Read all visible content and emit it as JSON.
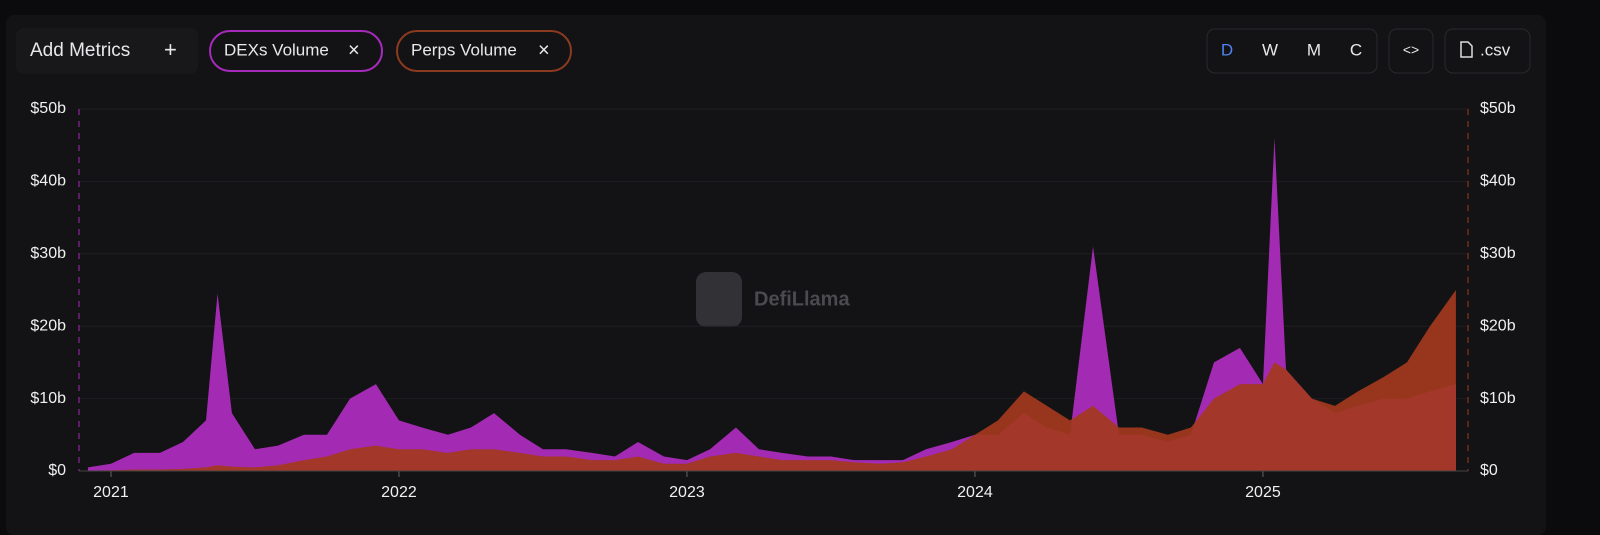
{
  "toolbar": {
    "add_metrics": "Add Metrics",
    "add_icon": "+",
    "remove_icon": "×",
    "periods": [
      "D",
      "W",
      "M",
      "C"
    ],
    "embed": "<>",
    "csv": ".csv"
  },
  "watermark": "DefiLlama",
  "chart_data": {
    "type": "area",
    "x": [
      2020.92,
      2021.0,
      2021.08,
      2021.17,
      2021.25,
      2021.33,
      2021.37,
      2021.42,
      2021.5,
      2021.58,
      2021.67,
      2021.75,
      2021.83,
      2021.92,
      2022.0,
      2022.08,
      2022.17,
      2022.25,
      2022.33,
      2022.42,
      2022.5,
      2022.58,
      2022.67,
      2022.75,
      2022.83,
      2022.92,
      2023.0,
      2023.08,
      2023.17,
      2023.25,
      2023.33,
      2023.42,
      2023.5,
      2023.58,
      2023.67,
      2023.75,
      2023.83,
      2023.92,
      2024.0,
      2024.08,
      2024.17,
      2024.25,
      2024.33,
      2024.41,
      2024.5,
      2024.58,
      2024.67,
      2024.75,
      2024.83,
      2024.92,
      2025.0,
      2025.04,
      2025.08,
      2025.17,
      2025.25,
      2025.33,
      2025.42,
      2025.5,
      2025.58,
      2025.67
    ],
    "series": [
      {
        "name": "DEXs Volume",
        "color": "#b02cc0",
        "values": [
          0.5,
          1,
          2.5,
          2.5,
          4,
          7,
          24.5,
          8,
          3,
          3.5,
          5,
          5,
          10,
          12,
          7,
          6,
          5,
          6,
          8,
          5,
          3,
          3,
          2.5,
          2,
          4,
          2,
          1.5,
          3,
          6,
          3,
          2.5,
          2,
          2,
          1.5,
          1.5,
          1.5,
          3,
          4,
          5,
          5,
          8,
          6,
          5,
          31,
          5,
          5,
          4,
          5,
          15,
          17,
          12,
          46,
          14,
          10,
          8,
          9,
          10,
          10,
          11,
          12
        ]
      },
      {
        "name": "Perps Volume",
        "color": "#a33a1e",
        "values": [
          0.05,
          0.1,
          0.2,
          0.2,
          0.3,
          0.5,
          0.8,
          0.6,
          0.5,
          0.8,
          1.5,
          2,
          3,
          3.5,
          3,
          3,
          2.5,
          3,
          3,
          2.5,
          2,
          2,
          1.5,
          1.5,
          2,
          1,
          1,
          2,
          2.5,
          2,
          1.5,
          1.5,
          1.5,
          1.2,
          1,
          1.2,
          2,
          3,
          5,
          7,
          11,
          9,
          7,
          9,
          6,
          6,
          5,
          6,
          10,
          12,
          12,
          15,
          14,
          10,
          9,
          11,
          13,
          15,
          20,
          25
        ]
      }
    ],
    "xlim": [
      2020.889,
      2025.712
    ],
    "xticks": [
      2021,
      2022,
      2023,
      2024,
      2025
    ],
    "ylim": [
      0,
      50
    ],
    "yticks": [
      {
        "value": 0,
        "label": "$0"
      },
      {
        "value": 10,
        "label": "$10b"
      },
      {
        "value": 20,
        "label": "$20b"
      },
      {
        "value": 30,
        "label": "$30b"
      },
      {
        "value": 40,
        "label": "$40b"
      },
      {
        "value": 50,
        "label": "$50b"
      }
    ],
    "grid": true
  }
}
